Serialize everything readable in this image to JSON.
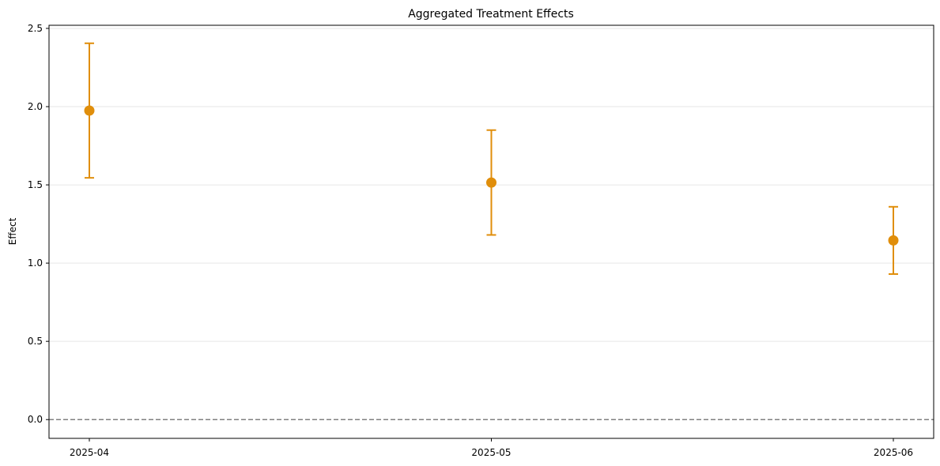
{
  "chart_data": {
    "type": "scatter",
    "title": "Aggregated Treatment Effects",
    "xlabel": "",
    "ylabel": "Effect",
    "categories": [
      "2025-04",
      "2025-05",
      "2025-06"
    ],
    "series": [
      {
        "values": [
          1.975,
          1.515,
          1.145
        ],
        "ci_lower": [
          1.545,
          1.18,
          0.93
        ],
        "ci_upper": [
          2.405,
          1.85,
          1.36
        ]
      }
    ],
    "ylim": [
      -0.12,
      2.52
    ],
    "yticks": [
      0.0,
      0.5,
      1.0,
      1.5,
      2.0,
      2.5
    ],
    "ytick_labels": [
      "0.0",
      "0.5",
      "1.0",
      "1.5",
      "2.0",
      "2.5"
    ],
    "reference_line": 0.0,
    "grid": "y-only",
    "colors": {
      "point": "#e08e0b",
      "reference_line": "#808080",
      "grid": "#e6e6e6",
      "axes": "#000000"
    }
  }
}
